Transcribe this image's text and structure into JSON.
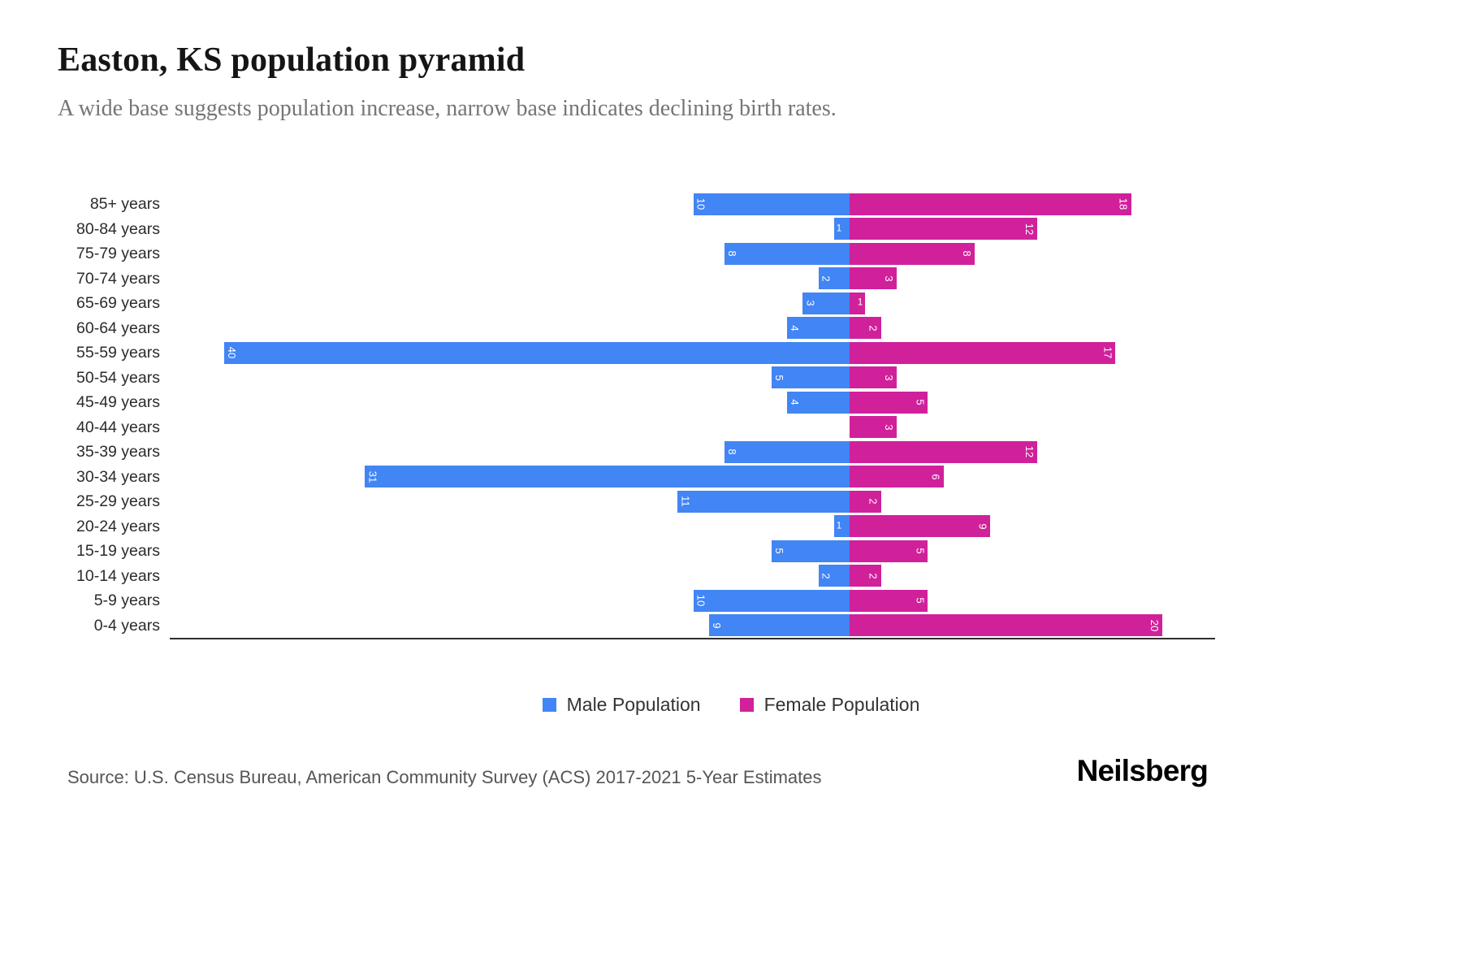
{
  "header": {
    "title": "Easton, KS population pyramid",
    "subtitle": "A wide base suggests population increase, narrow base indicates declining birth rates."
  },
  "chart_data": {
    "type": "bar",
    "variant": "population-pyramid",
    "orientation": "horizontal-diverging",
    "categories": [
      "85+ years",
      "80-84 years",
      "75-79 years",
      "70-74 years",
      "65-69 years",
      "60-64 years",
      "55-59 years",
      "50-54 years",
      "45-49 years",
      "40-44 years",
      "35-39 years",
      "30-34 years",
      "25-29 years",
      "20-24 years",
      "15-19 years",
      "10-14 years",
      "5-9 years",
      "0-4 years"
    ],
    "series": [
      {
        "name": "Male Population",
        "side": "left",
        "color": "#4285F4",
        "values": [
          10,
          1,
          8,
          2,
          3,
          4,
          40,
          5,
          4,
          0,
          8,
          31,
          11,
          1,
          5,
          2,
          10,
          9
        ]
      },
      {
        "name": "Female Population",
        "side": "right",
        "color": "#D0219B",
        "values": [
          18,
          12,
          8,
          3,
          1,
          2,
          17,
          3,
          5,
          3,
          12,
          6,
          2,
          9,
          5,
          2,
          5,
          20
        ]
      }
    ],
    "axis_max_per_side": 40,
    "grid": false,
    "legend_position": "bottom-center",
    "xlabel": "",
    "ylabel": ""
  },
  "legend": {
    "items": [
      {
        "label": "Male Population",
        "color": "#4285F4"
      },
      {
        "label": "Female Population",
        "color": "#D0219B"
      }
    ]
  },
  "footer": {
    "source": "Source: U.S. Census Bureau, American Community Survey (ACS) 2017-2021 5-Year Estimates",
    "brand": "Neilsberg"
  }
}
